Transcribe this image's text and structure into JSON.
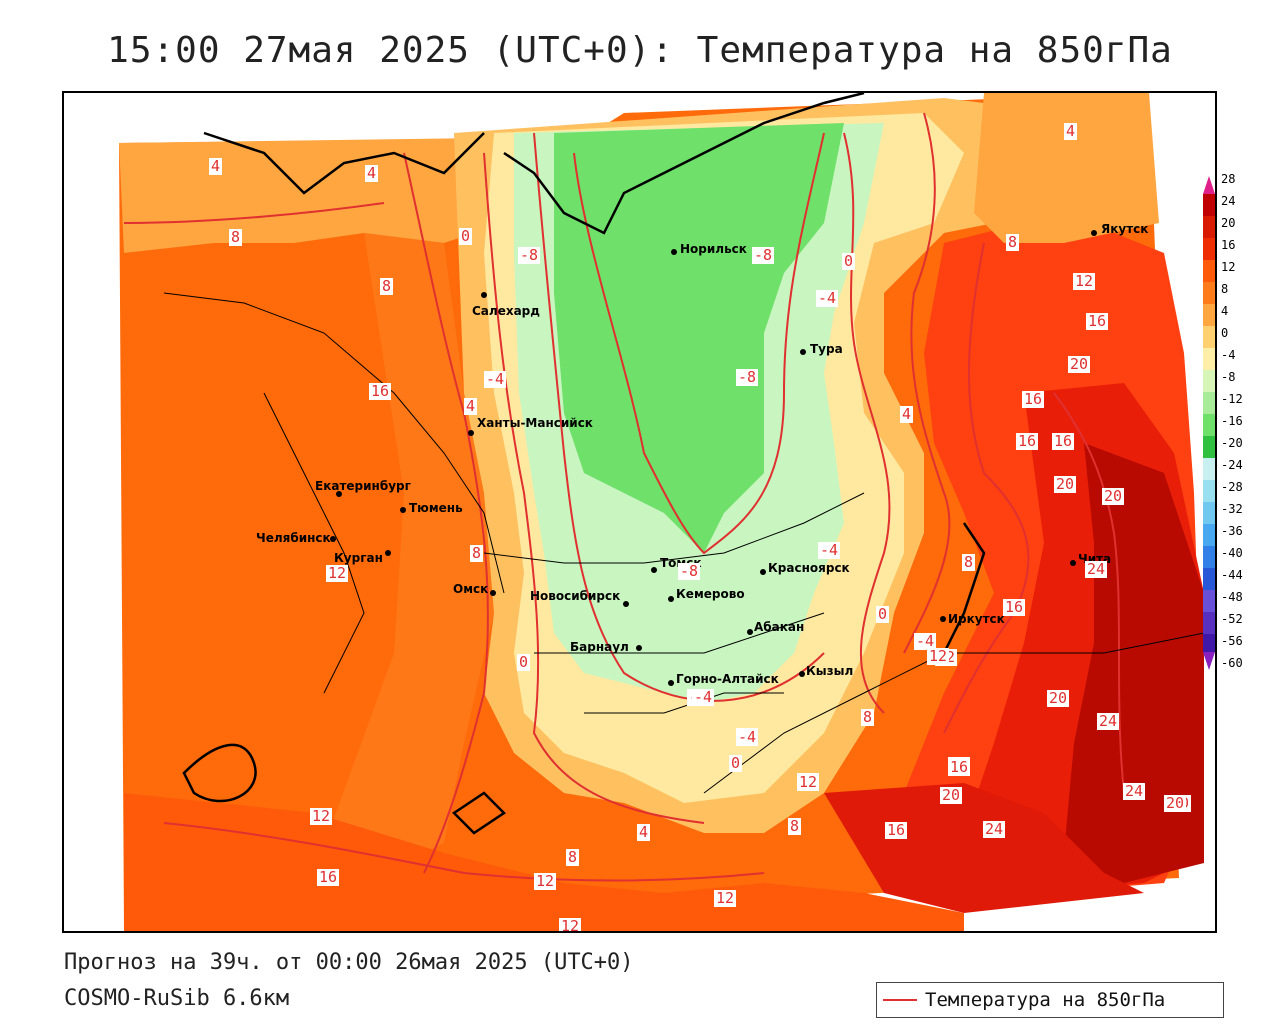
{
  "title": "15:00 27мая 2025 (UTC+0): Температура на 850гПа",
  "footer": {
    "forecast": "Прогноз на 39ч. от 00:00 26мая 2025 (UTC+0)",
    "model": "COSMO-RuSib 6.6км"
  },
  "legend": {
    "label": "Температура на 850гПа",
    "color": "#e03030"
  },
  "colorbar": {
    "ticks": [
      "28",
      "24",
      "20",
      "16",
      "12",
      "8",
      "4",
      "0",
      "-4",
      "-8",
      "-12",
      "-16",
      "-20",
      "-24",
      "-28",
      "-32",
      "-36",
      "-40",
      "-44",
      "-48",
      "-52",
      "-56",
      "-60"
    ]
  },
  "cities": [
    {
      "name": "Салехард"
    },
    {
      "name": "Норильск"
    },
    {
      "name": "Тура"
    },
    {
      "name": "Якутск"
    },
    {
      "name": "Ханты-Мансийск"
    },
    {
      "name": "Екатеринбург"
    },
    {
      "name": "Тюмень"
    },
    {
      "name": "Челябинск"
    },
    {
      "name": "Курган"
    },
    {
      "name": "Омск"
    },
    {
      "name": "Новосибирск"
    },
    {
      "name": "Томск"
    },
    {
      "name": "Кемерово"
    },
    {
      "name": "Красноярск"
    },
    {
      "name": "Барнаул"
    },
    {
      "name": "Абакан"
    },
    {
      "name": "Горно-Алтайск"
    },
    {
      "name": "Кызыл"
    },
    {
      "name": "Иркутск"
    },
    {
      "name": "Чита"
    }
  ],
  "isolines": [
    "4",
    "4",
    "4",
    "8",
    "8",
    "8",
    "0",
    "-8",
    "-8",
    "-4",
    "0",
    "-4",
    "12",
    "16",
    "20",
    "16",
    "16",
    "16",
    "16",
    "20",
    "20",
    "4",
    "-4",
    "4",
    "-8",
    "8",
    "8",
    "0",
    "-4",
    "0",
    "-8",
    "-4",
    "16",
    "16",
    "12",
    "8",
    "12",
    "24",
    "20",
    "24",
    "12",
    "16",
    "20",
    "24",
    "24",
    "20",
    "16",
    "12",
    "4",
    "8",
    "12",
    "12",
    "16",
    "12",
    "12",
    "8",
    "0",
    "-4",
    "-4",
    "-4",
    "20",
    "12"
  ]
}
